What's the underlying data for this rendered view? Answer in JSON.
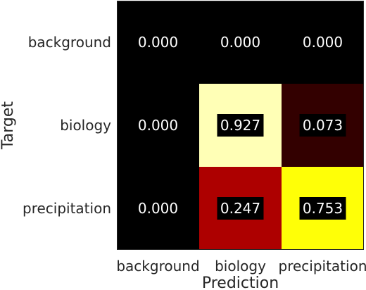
{
  "chart_data": {
    "type": "heatmap",
    "title": "",
    "xlabel": "Prediction",
    "ylabel": "Target",
    "x_categories": [
      "background",
      "biology",
      "precipitation"
    ],
    "y_categories": [
      "background",
      "biology",
      "precipitation"
    ],
    "values": [
      [
        0.0,
        0.0,
        0.0
      ],
      [
        0.0,
        0.927,
        0.073
      ],
      [
        0.0,
        0.247,
        0.753
      ]
    ],
    "value_labels": [
      [
        "0.000",
        "0.000",
        "0.000"
      ],
      [
        "0.000",
        "0.927",
        "0.073"
      ],
      [
        "0.000",
        "0.247",
        "0.753"
      ]
    ],
    "colormap": "hot",
    "vmin": 0,
    "vmax": 1,
    "label_box_color": "#000000",
    "label_text_color": "#ffffff"
  }
}
